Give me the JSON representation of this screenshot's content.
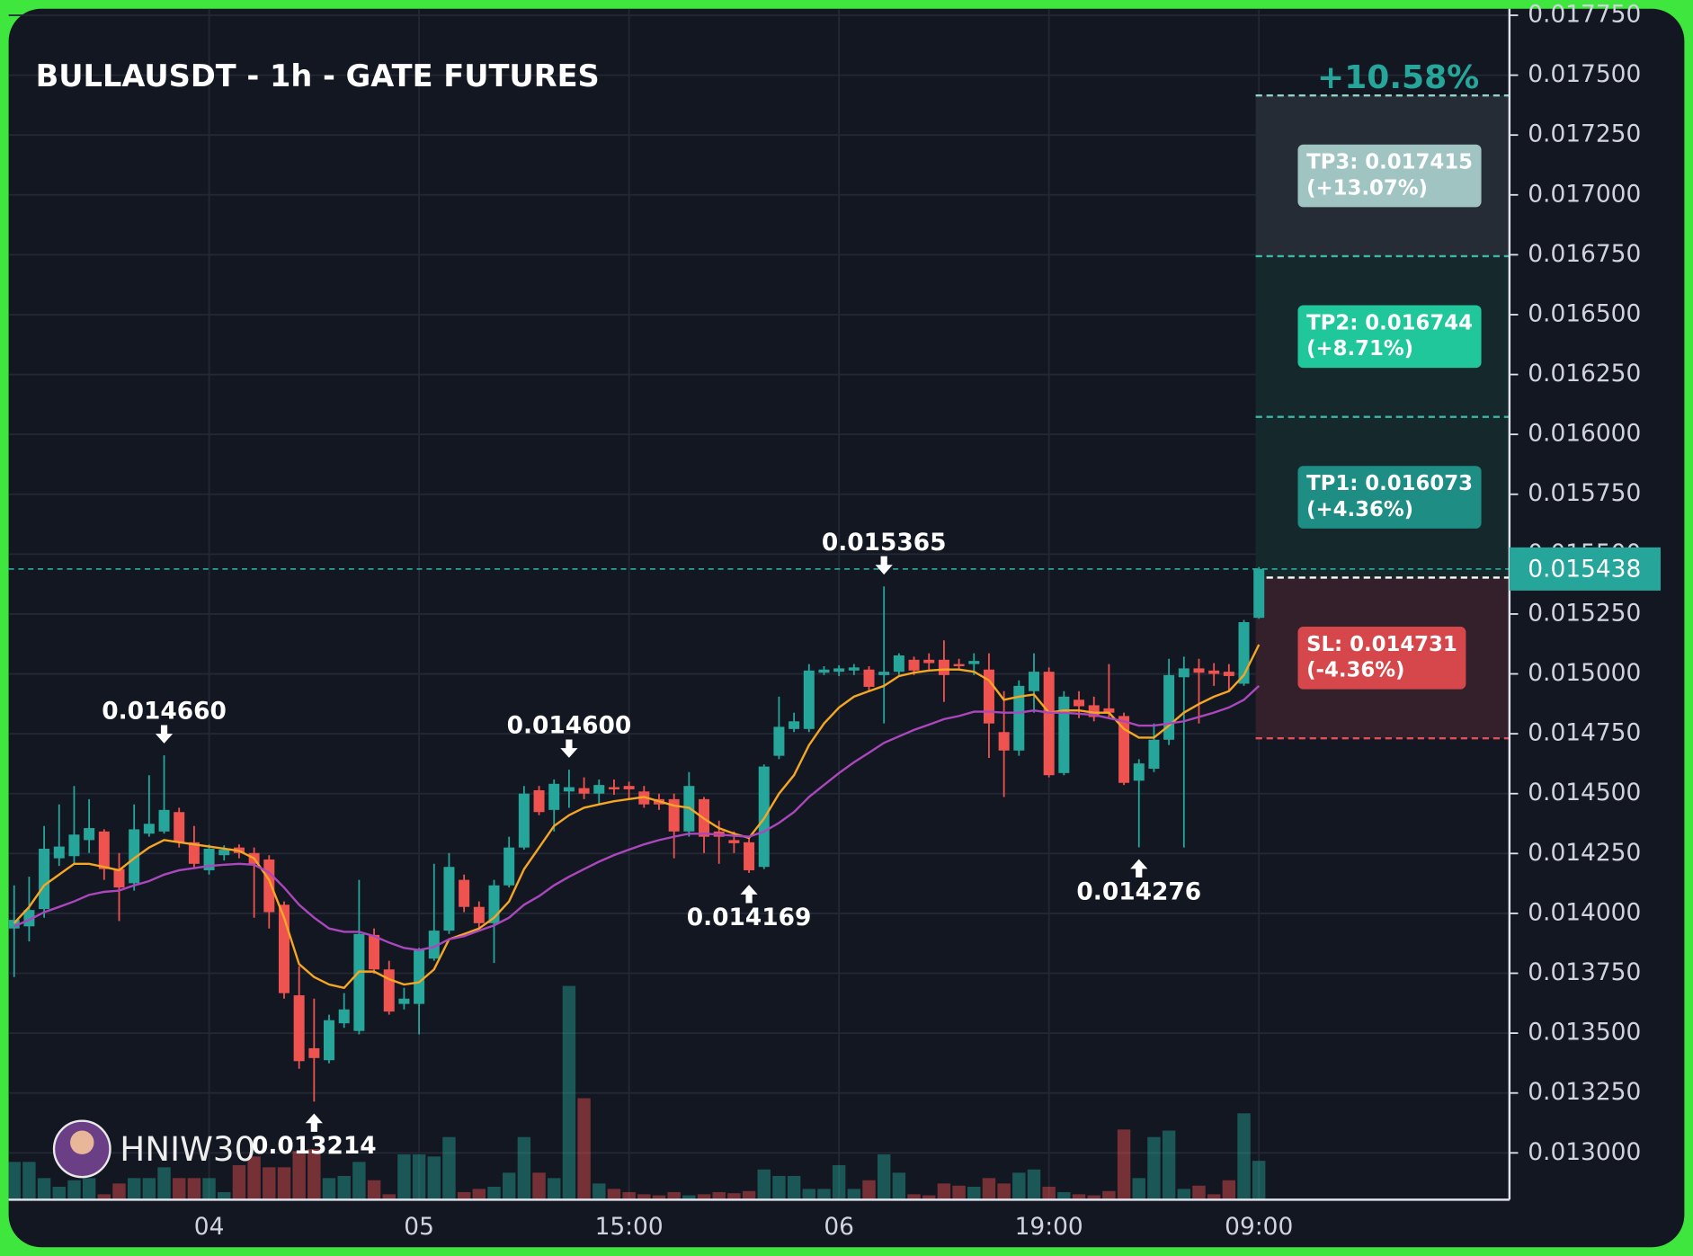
{
  "chart_data": {
    "type": "candlestick",
    "title": "BULLAUSDT - 1h - GATE FUTURES",
    "watermark": "HNIW30",
    "up_color": "#26a69a",
    "down_color": "#ef5350",
    "grid": true,
    "categories": [
      null,
      null,
      null,
      null,
      null,
      null,
      null,
      null,
      null,
      null,
      null,
      null,
      null,
      "04",
      null,
      null,
      null,
      null,
      null,
      null,
      null,
      null,
      null,
      null,
      null,
      null,
      null,
      "05",
      null,
      null,
      null,
      null,
      null,
      null,
      null,
      null,
      null,
      null,
      null,
      null,
      null,
      "15:00",
      null,
      null,
      null,
      null,
      null,
      null,
      null,
      null,
      null,
      null,
      null,
      null,
      null,
      "06",
      null,
      null,
      null,
      null,
      null,
      null,
      null,
      null,
      null,
      null,
      null,
      null,
      null,
      "19:00",
      null,
      null,
      null,
      null,
      null,
      null,
      null,
      null,
      null,
      null,
      null,
      null,
      null,
      "09:00"
    ],
    "open": [
      0.013937,
      0.013946,
      0.014018,
      0.01423,
      0.014239,
      0.014306,
      0.014342,
      0.014185,
      0.014126,
      0.014333,
      0.014342,
      0.014423,
      0.014297,
      0.01418,
      0.014243,
      0.014275,
      0.014252,
      0.014225,
      0.014036,
      0.013658,
      0.013437,
      0.013387,
      0.013541,
      0.013509,
      0.01391,
      0.013766,
      0.013622,
      0.013622,
      0.013811,
      0.013928,
      0.01414,
      0.014027,
      0.013959,
      0.014117,
      0.014275,
      0.014514,
      0.014432,
      0.014509,
      0.014523,
      0.0145,
      0.014527,
      0.014532,
      0.014509,
      0.014477,
      0.014477,
      0.014342,
      0.014477,
      0.014342,
      0.014306,
      0.014297,
      0.014194,
      0.014658,
      0.01477,
      0.01477,
      0.015005,
      0.015009,
      0.015014,
      0.015018,
      0.014995,
      0.015009,
      0.015059,
      0.015059,
      0.015059,
      0.015041,
      0.015041,
      0.015018,
      0.014757,
      0.01468,
      0.014928,
      0.015009,
      0.014586,
      0.014892,
      0.014869,
      0.014856,
      0.014824,
      0.014554,
      0.014604,
      0.014725,
      0.014986,
      0.015023,
      0.015014,
      0.015009,
      0.014959,
      0.015234
    ],
    "high": [
      0.014117,
      0.014153,
      0.014365,
      0.014455,
      0.014532,
      0.014477,
      0.014351,
      0.014252,
      0.014455,
      0.014577,
      0.01466,
      0.014441,
      0.014365,
      0.014288,
      0.014284,
      0.014288,
      0.014275,
      0.014243,
      0.01405,
      0.013779,
      0.013644,
      0.013577,
      0.013667,
      0.01414,
      0.013937,
      0.013802,
      0.013689,
      0.013856,
      0.014207,
      0.014252,
      0.014162,
      0.01405,
      0.01414,
      0.01432,
      0.014532,
      0.014532,
      0.014559,
      0.0146,
      0.014568,
      0.014559,
      0.014559,
      0.01455,
      0.014532,
      0.0145,
      0.0145,
      0.01459,
      0.014486,
      0.014387,
      0.014342,
      0.01432,
      0.014622,
      0.014905,
      0.014838,
      0.015041,
      0.015032,
      0.015036,
      0.015041,
      0.015032,
      0.015365,
      0.015086,
      0.015072,
      0.015086,
      0.01514,
      0.015063,
      0.015086,
      0.015086,
      0.014928,
      0.014973,
      0.015086,
      0.015027,
      0.014928,
      0.014928,
      0.014905,
      0.015041,
      0.014838,
      0.014644,
      0.014793,
      0.015063,
      0.015072,
      0.015063,
      0.015045,
      0.015041,
      0.015225,
      0.015446
    ],
    "low": [
      0.013734,
      0.013883,
      0.013982,
      0.014198,
      0.014207,
      0.014252,
      0.01414,
      0.013968,
      0.014095,
      0.01432,
      0.014333,
      0.014275,
      0.014185,
      0.014162,
      0.014221,
      0.01423,
      0.013982,
      0.013937,
      0.013644,
      0.013351,
      0.013214,
      0.013374,
      0.013522,
      0.013495,
      0.013748,
      0.013577,
      0.013599,
      0.013495,
      0.013802,
      0.013914,
      0.014005,
      0.013937,
      0.013793,
      0.014108,
      0.014266,
      0.01441,
      0.014342,
      0.014441,
      0.014477,
      0.014455,
      0.014495,
      0.014477,
      0.014441,
      0.014432,
      0.01423,
      0.01432,
      0.014252,
      0.014207,
      0.014252,
      0.014169,
      0.014185,
      0.014644,
      0.014757,
      0.014757,
      0.014995,
      0.014991,
      0.014995,
      0.014928,
      0.014793,
      0.014995,
      0.014995,
      0.015018,
      0.014883,
      0.015018,
      0.014995,
      0.014649,
      0.014486,
      0.014658,
      0.014838,
      0.014568,
      0.014577,
      0.014815,
      0.014802,
      0.014815,
      0.014536,
      0.014276,
      0.01459,
      0.014703,
      0.014275,
      0.014793,
      0.01495,
      0.014928,
      0.01495,
      0.01523
    ],
    "close": [
      0.013973,
      0.014014,
      0.01427,
      0.014279,
      0.014329,
      0.014356,
      0.014185,
      0.014108,
      0.014351,
      0.014374,
      0.014432,
      0.014297,
      0.014207,
      0.01427,
      0.014266,
      0.014252,
      0.014207,
      0.014005,
      0.013667,
      0.013383,
      0.013396,
      0.013554,
      0.013599,
      0.013914,
      0.013766,
      0.01359,
      0.013644,
      0.013847,
      0.013928,
      0.014194,
      0.014027,
      0.013959,
      0.014117,
      0.014275,
      0.0145,
      0.014423,
      0.014541,
      0.014527,
      0.0145,
      0.014536,
      0.014518,
      0.014518,
      0.014455,
      0.014455,
      0.014342,
      0.014532,
      0.01432,
      0.01432,
      0.014293,
      0.01418,
      0.014613,
      0.014779,
      0.014802,
      0.015014,
      0.015018,
      0.015023,
      0.015027,
      0.014946,
      0.015009,
      0.015077,
      0.015014,
      0.015045,
      0.014995,
      0.015032,
      0.015054,
      0.014793,
      0.01468,
      0.01495,
      0.015009,
      0.014577,
      0.014905,
      0.014865,
      0.01482,
      0.014838,
      0.014545,
      0.014626,
      0.014725,
      0.014995,
      0.015023,
      0.015005,
      0.015,
      0.014991,
      0.015216,
      0.015438
    ],
    "volume": [
      35,
      35,
      20,
      12,
      18,
      20,
      5,
      15,
      20,
      20,
      30,
      20,
      20,
      20,
      7,
      32,
      40,
      30,
      30,
      45,
      47,
      20,
      22,
      35,
      18,
      5,
      42,
      42,
      40,
      58,
      7,
      10,
      12,
      25,
      58,
      25,
      20,
      198,
      94,
      15,
      10,
      7,
      5,
      4,
      7,
      4,
      5,
      7,
      6,
      8,
      28,
      22,
      22,
      10,
      10,
      32,
      10,
      18,
      42,
      25,
      5,
      4,
      15,
      13,
      12,
      20,
      15,
      25,
      28,
      12,
      7,
      5,
      4,
      8,
      65,
      20,
      58,
      64,
      10,
      13,
      5,
      18,
      80,
      36
    ],
    "high_labels": [
      null,
      null,
      null,
      null,
      null,
      null,
      null,
      null,
      null,
      null,
      "0.014660",
      null,
      null,
      null,
      null,
      null,
      null,
      null,
      null,
      null,
      null,
      null,
      null,
      null,
      null,
      null,
      null,
      null,
      null,
      null,
      null,
      null,
      null,
      null,
      null,
      null,
      null,
      "0.014600",
      null,
      null,
      null,
      null,
      null,
      null,
      null,
      null,
      null,
      null,
      null,
      null,
      null,
      null,
      null,
      null,
      null,
      null,
      null,
      null,
      "0.015365",
      null,
      null,
      null,
      null,
      null,
      null,
      null,
      null,
      null,
      null,
      null,
      null,
      null,
      null,
      null,
      null,
      null,
      null,
      null,
      null,
      null,
      null,
      null,
      null,
      null
    ],
    "low_labels": [
      null,
      null,
      null,
      null,
      null,
      null,
      null,
      null,
      null,
      null,
      null,
      null,
      null,
      null,
      null,
      null,
      null,
      null,
      null,
      null,
      "0.013214",
      null,
      null,
      null,
      null,
      null,
      null,
      null,
      null,
      null,
      null,
      null,
      null,
      null,
      null,
      null,
      null,
      null,
      null,
      null,
      null,
      null,
      null,
      null,
      null,
      null,
      null,
      null,
      null,
      "0.014169",
      null,
      null,
      null,
      null,
      null,
      null,
      null,
      null,
      null,
      null,
      null,
      null,
      null,
      null,
      null,
      null,
      null,
      null,
      null,
      null,
      null,
      null,
      null,
      null,
      null,
      "0.014276",
      null,
      null,
      null,
      null,
      null,
      null,
      null,
      null
    ],
    "last_label": "0.015438",
    "ma": [
      {
        "color": "#f5a623",
        "values": [
          0.013959,
          0.014027,
          0.014117,
          0.014162,
          0.014207,
          0.014207,
          0.014194,
          0.01418,
          0.01423,
          0.014275,
          0.014306,
          0.014297,
          0.014288,
          0.014279,
          0.01427,
          0.014261,
          0.01423,
          0.01414,
          0.013982,
          0.013788,
          0.013734,
          0.013703,
          0.013689,
          0.013757,
          0.013757,
          0.013725,
          0.013703,
          0.013712,
          0.013766,
          0.013892,
          0.013914,
          0.013937,
          0.013982,
          0.01405,
          0.014185,
          0.014275,
          0.014365,
          0.01441,
          0.014441,
          0.014455,
          0.014468,
          0.014477,
          0.014486,
          0.014468,
          0.01445,
          0.014441,
          0.014396,
          0.014356,
          0.014333,
          0.014315,
          0.014396,
          0.0145,
          0.014577,
          0.014703,
          0.014793,
          0.01486,
          0.014905,
          0.014928,
          0.01495,
          0.014991,
          0.015005,
          0.015014,
          0.015018,
          0.015018,
          0.015009,
          0.014973,
          0.014892,
          0.014905,
          0.014914,
          0.014838,
          0.014847,
          0.014847,
          0.014838,
          0.014838,
          0.01477,
          0.014734,
          0.014734,
          0.014784,
          0.014838,
          0.014874,
          0.014905,
          0.014928,
          0.014995,
          0.015122
        ]
      },
      {
        "color": "#ab47bc",
        "values": [
          0.013946,
          0.013973,
          0.014005,
          0.014027,
          0.01405,
          0.014077,
          0.01409,
          0.014095,
          0.014117,
          0.014135,
          0.014162,
          0.01418,
          0.014189,
          0.014198,
          0.014203,
          0.014207,
          0.014203,
          0.014171,
          0.014108,
          0.014036,
          0.013982,
          0.013937,
          0.013923,
          0.013923,
          0.013905,
          0.013878,
          0.013856,
          0.013847,
          0.01386,
          0.013892,
          0.013905,
          0.013928,
          0.01395,
          0.013982,
          0.014036,
          0.014072,
          0.014117,
          0.014153,
          0.014185,
          0.014216,
          0.014243,
          0.014266,
          0.014288,
          0.014306,
          0.01432,
          0.014333,
          0.014333,
          0.014329,
          0.014324,
          0.01432,
          0.014342,
          0.014378,
          0.014423,
          0.014486,
          0.014536,
          0.014586,
          0.014631,
          0.014671,
          0.014712,
          0.014739,
          0.014766,
          0.014788,
          0.014811,
          0.014824,
          0.014842,
          0.014842,
          0.014838,
          0.014838,
          0.014847,
          0.014838,
          0.014838,
          0.014833,
          0.014829,
          0.014815,
          0.014802,
          0.014784,
          0.014784,
          0.014793,
          0.014802,
          0.01482,
          0.014838,
          0.01486,
          0.014892,
          0.01495
        ]
      }
    ],
    "position": {
      "change": "+10.58%",
      "entry": 0.015402,
      "targets": [
        {
          "value": 0.017415,
          "label": "TP3: 0.017415",
          "change": "(+13.07%)",
          "color": "#9fc4c2"
        },
        {
          "value": 0.016744,
          "label": "TP2: 0.016744",
          "change": "(+8.71%)",
          "color": "#20c79a"
        },
        {
          "value": 0.016073,
          "label": "TP1: 0.016073",
          "change": "(+4.36%)",
          "color": "#1e8d84"
        }
      ],
      "stop": {
        "value": 0.014731,
        "label": "SL: 0.014731",
        "change": "(-4.36%)",
        "color": "#d5474b"
      }
    },
    "ylim": [
      0.0128,
      0.01775
    ],
    "yticks": [
      {
        "value": 0.013,
        "label": "0.013000"
      },
      {
        "value": 0.01325,
        "label": "0.013250"
      },
      {
        "value": 0.0135,
        "label": "0.013500"
      },
      {
        "value": 0.01375,
        "label": "0.013750"
      },
      {
        "value": 0.014,
        "label": "0.014000"
      },
      {
        "value": 0.01425,
        "label": "0.014250"
      },
      {
        "value": 0.0145,
        "label": "0.014500"
      },
      {
        "value": 0.01475,
        "label": "0.014750"
      },
      {
        "value": 0.015,
        "label": "0.015000"
      },
      {
        "value": 0.01525,
        "label": "0.015250"
      },
      {
        "value": 0.0155,
        "label": "0.015500"
      },
      {
        "value": 0.01575,
        "label": "0.015750"
      },
      {
        "value": 0.016,
        "label": "0.016000"
      },
      {
        "value": 0.01625,
        "label": "0.016250"
      },
      {
        "value": 0.0165,
        "label": "0.016500"
      },
      {
        "value": 0.01675,
        "label": "0.016750"
      },
      {
        "value": 0.017,
        "label": "0.017000"
      },
      {
        "value": 0.01725,
        "label": "0.017250"
      },
      {
        "value": 0.0175,
        "label": "0.017500"
      },
      {
        "value": 0.01775,
        "label": "0.017750"
      }
    ]
  }
}
